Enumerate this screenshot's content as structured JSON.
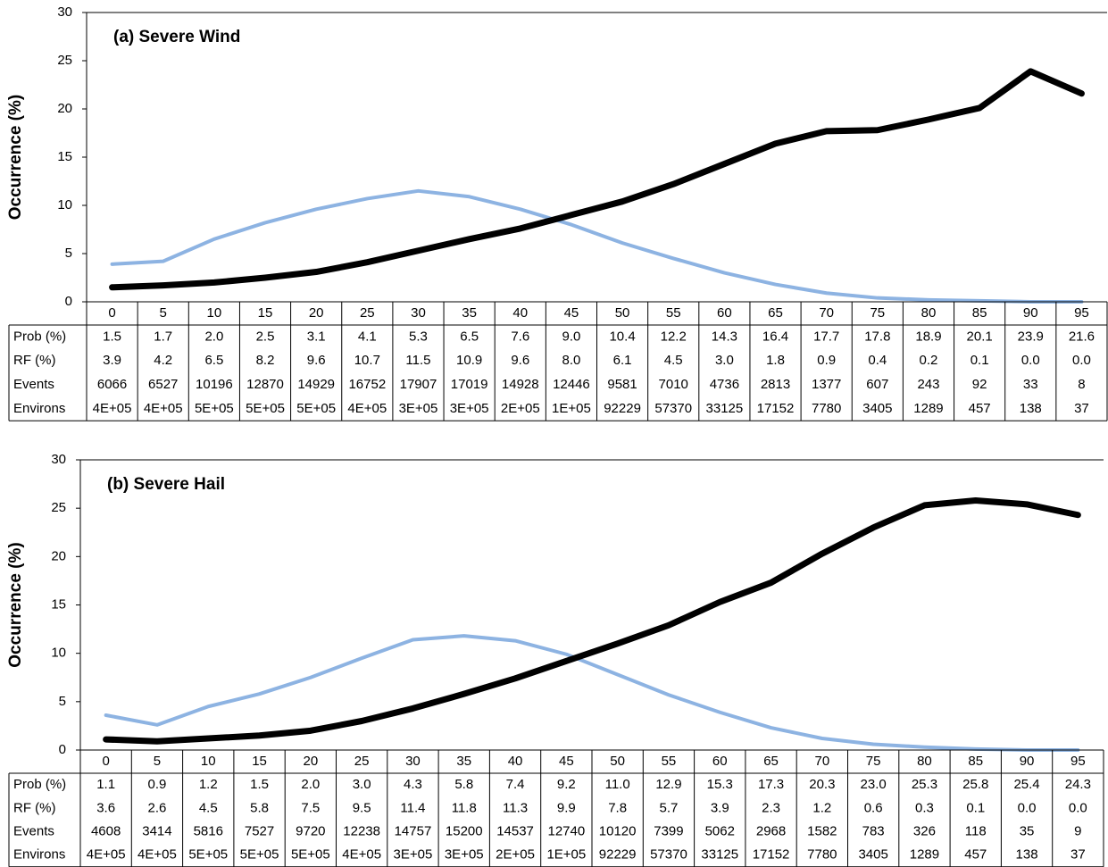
{
  "chart_data": [
    {
      "type": "line",
      "title": "(a) Severe Wind",
      "y_label": "Occurrence (%)",
      "categories": [
        0,
        5,
        10,
        15,
        20,
        25,
        30,
        35,
        40,
        45,
        50,
        55,
        60,
        65,
        70,
        75,
        80,
        85,
        90,
        95
      ],
      "ylim": [
        0,
        30
      ],
      "yticks": [
        0,
        5,
        10,
        15,
        20,
        25,
        30
      ],
      "series": [
        {
          "name": "Prob (%)",
          "color": "#000000",
          "values": [
            1.5,
            1.7,
            2.0,
            2.5,
            3.1,
            4.1,
            5.3,
            6.5,
            7.6,
            9.0,
            10.4,
            12.2,
            14.3,
            16.4,
            17.7,
            17.8,
            18.9,
            20.1,
            23.9,
            21.6
          ],
          "value_labels": [
            "1.5",
            "1.7",
            "2.0",
            "2.5",
            "3.1",
            "4.1",
            "5.3",
            "6.5",
            "7.6",
            "9.0",
            "10.4",
            "12.2",
            "14.3",
            "16.4",
            "17.7",
            "17.8",
            "18.9",
            "20.1",
            "23.9",
            "21.6"
          ]
        },
        {
          "name": "RF (%)",
          "color": "#8db3e2",
          "values": [
            3.9,
            4.2,
            6.5,
            8.2,
            9.6,
            10.7,
            11.5,
            10.9,
            9.6,
            8.0,
            6.1,
            4.5,
            3.0,
            1.8,
            0.9,
            0.4,
            0.2,
            0.1,
            0.0,
            0.0
          ],
          "value_labels": [
            "3.9",
            "4.2",
            "6.5",
            "8.2",
            "9.6",
            "10.7",
            "11.5",
            "10.9",
            "9.6",
            "8.0",
            "6.1",
            "4.5",
            "3.0",
            "1.8",
            "0.9",
            "0.4",
            "0.2",
            "0.1",
            "0.0",
            "0.0"
          ]
        }
      ],
      "table_rows": [
        {
          "name": "Events",
          "values": [
            6066,
            6527,
            10196,
            12870,
            14929,
            16752,
            17907,
            17019,
            14928,
            12446,
            9581,
            7010,
            4736,
            2813,
            1377,
            607,
            243,
            92,
            33,
            8
          ]
        },
        {
          "name": "Environs",
          "values": [
            400000,
            400000,
            500000,
            500000,
            500000,
            400000,
            300000,
            300000,
            200000,
            100000,
            92229,
            57370,
            33125,
            17152,
            7780,
            3405,
            1289,
            457,
            138,
            37
          ],
          "value_labels": [
            "4E+05",
            "4E+05",
            "5E+05",
            "5E+05",
            "5E+05",
            "4E+05",
            "3E+05",
            "3E+05",
            "2E+05",
            "1E+05",
            "92229",
            "57370",
            "33125",
            "17152",
            "7780",
            "3405",
            "1289",
            "457",
            "138",
            "37"
          ]
        }
      ]
    },
    {
      "type": "line",
      "title": "(b) Severe Hail",
      "y_label": "Occurrence (%)",
      "categories": [
        0,
        5,
        10,
        15,
        20,
        25,
        30,
        35,
        40,
        45,
        50,
        55,
        60,
        65,
        70,
        75,
        80,
        85,
        90,
        95
      ],
      "ylim": [
        0,
        30
      ],
      "yticks": [
        0,
        5,
        10,
        15,
        20,
        25,
        30
      ],
      "series": [
        {
          "name": "Prob (%)",
          "color": "#000000",
          "values": [
            1.1,
            0.9,
            1.2,
            1.5,
            2.0,
            3.0,
            4.3,
            5.8,
            7.4,
            9.2,
            11.0,
            12.9,
            15.3,
            17.3,
            20.3,
            23.0,
            25.3,
            25.8,
            25.4,
            24.3
          ],
          "value_labels": [
            "1.1",
            "0.9",
            "1.2",
            "1.5",
            "2.0",
            "3.0",
            "4.3",
            "5.8",
            "7.4",
            "9.2",
            "11.0",
            "12.9",
            "15.3",
            "17.3",
            "20.3",
            "23.0",
            "25.3",
            "25.8",
            "25.4",
            "24.3"
          ]
        },
        {
          "name": "RF (%)",
          "color": "#8db3e2",
          "values": [
            3.6,
            2.6,
            4.5,
            5.8,
            7.5,
            9.5,
            11.4,
            11.8,
            11.3,
            9.9,
            7.8,
            5.7,
            3.9,
            2.3,
            1.2,
            0.6,
            0.3,
            0.1,
            0.0,
            0.0
          ],
          "value_labels": [
            "3.6",
            "2.6",
            "4.5",
            "5.8",
            "7.5",
            "9.5",
            "11.4",
            "11.8",
            "11.3",
            "9.9",
            "7.8",
            "5.7",
            "3.9",
            "2.3",
            "1.2",
            "0.6",
            "0.3",
            "0.1",
            "0.0",
            "0.0"
          ]
        }
      ],
      "table_rows": [
        {
          "name": "Events",
          "values": [
            4608,
            3414,
            5816,
            7527,
            9720,
            12238,
            14757,
            15200,
            14537,
            12740,
            10120,
            7399,
            5062,
            2968,
            1582,
            783,
            326,
            118,
            35,
            9
          ]
        },
        {
          "name": "Environs",
          "values": [
            400000,
            400000,
            500000,
            500000,
            500000,
            400000,
            300000,
            300000,
            200000,
            100000,
            92229,
            57370,
            33125,
            17152,
            7780,
            3405,
            1289,
            457,
            138,
            37
          ],
          "value_labels": [
            "4E+05",
            "4E+05",
            "5E+05",
            "5E+05",
            "5E+05",
            "4E+05",
            "3E+05",
            "3E+05",
            "2E+05",
            "1E+05",
            "92229",
            "57370",
            "33125",
            "17152",
            "7780",
            "3405",
            "1289",
            "457",
            "138",
            "37"
          ]
        }
      ]
    }
  ]
}
